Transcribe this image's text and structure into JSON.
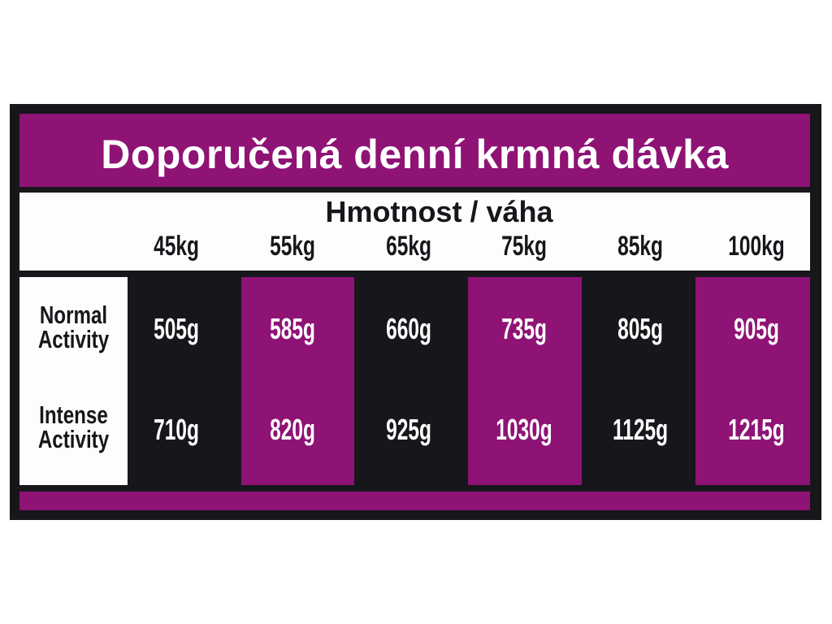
{
  "title": "Doporučená denní krmná dávka",
  "subtitle": "Hmotnost / váha",
  "weights": [
    "45kg",
    "55kg",
    "65kg",
    "75kg",
    "85kg",
    "100kg"
  ],
  "rows": [
    {
      "label_line1": "Normal",
      "label_line2": "Activity",
      "values": [
        "505g",
        "585g",
        "660g",
        "735g",
        "805g",
        "905g"
      ]
    },
    {
      "label_line1": "Intense",
      "label_line2": "Activity",
      "values": [
        "710g",
        "820g",
        "925g",
        "1030g",
        "1125g",
        "1215g"
      ]
    }
  ],
  "colors": {
    "dark": "#17161b",
    "purple": "#8e1375",
    "white": "#fdfdfd"
  }
}
